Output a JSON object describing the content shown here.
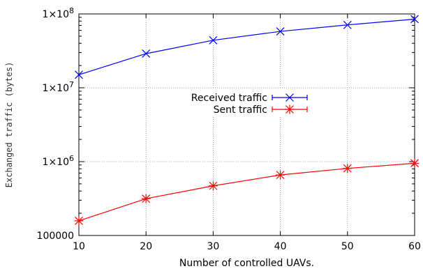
{
  "chart_data": {
    "type": "line",
    "xlabel": "Number of controlled UAVs.",
    "ylabel": "Exchanged traffic (bytes)",
    "x": [
      10,
      20,
      30,
      40,
      50,
      60
    ],
    "xlim": [
      10,
      60
    ],
    "ylim": [
      100000,
      100000000
    ],
    "yscale": "log",
    "xticks": [
      "10",
      "20",
      "30",
      "40",
      "50",
      "60"
    ],
    "yticks": [
      {
        "value": 100000,
        "label": "100000",
        "mantissa": "",
        "exponent": ""
      },
      {
        "value": 1000000,
        "label": "",
        "mantissa": "1×10",
        "exponent": "6"
      },
      {
        "value": 10000000,
        "label": "",
        "mantissa": "1×10",
        "exponent": "7"
      },
      {
        "value": 100000000,
        "label": "",
        "mantissa": "1×10",
        "exponent": "8"
      }
    ],
    "grid": true,
    "legend_position": "center",
    "series": [
      {
        "name": "Received traffic",
        "color": "#0000ff",
        "marker": "x",
        "values": [
          15000000,
          29000000,
          44000000,
          58000000,
          71000000,
          85000000
        ]
      },
      {
        "name": "Sent traffic",
        "color": "#ff0000",
        "marker": "star",
        "values": [
          158000,
          315000,
          470000,
          660000,
          810000,
          950000
        ]
      }
    ]
  }
}
